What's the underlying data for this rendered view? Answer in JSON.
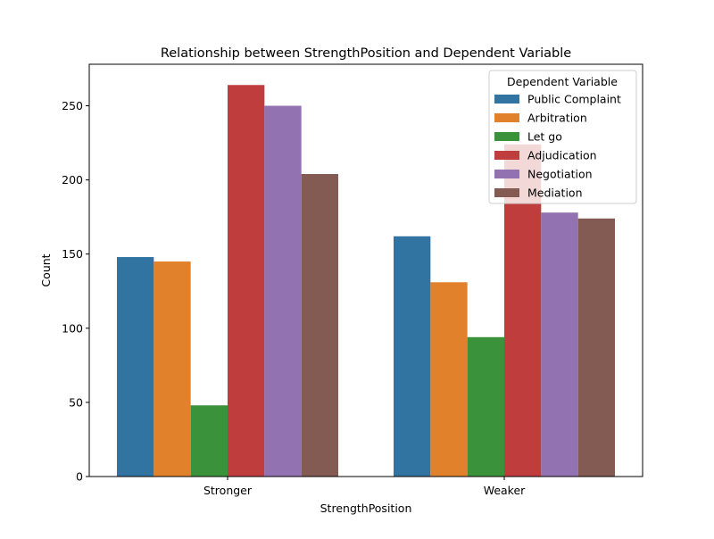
{
  "chart_data": {
    "type": "bar",
    "title": "Relationship between StrengthPosition and Dependent Variable",
    "xlabel": "StrengthPosition",
    "ylabel": "Count",
    "categories": [
      "Stronger",
      "Weaker"
    ],
    "ylim": [
      0,
      278
    ],
    "yticks": [
      0,
      50,
      100,
      150,
      200,
      250
    ],
    "grid": false,
    "legend": {
      "title": "Dependent Variable",
      "placement": "top-right"
    },
    "series": [
      {
        "name": "Public Complaint",
        "color": "#3274a1",
        "values": [
          148,
          162
        ]
      },
      {
        "name": "Arbitration",
        "color": "#e1812c",
        "values": [
          145,
          131
        ]
      },
      {
        "name": "Let go",
        "color": "#3a923a",
        "values": [
          48,
          94
        ]
      },
      {
        "name": "Adjudication",
        "color": "#c03d3e",
        "values": [
          264,
          224
        ]
      },
      {
        "name": "Negotiation",
        "color": "#9372b2",
        "values": [
          250,
          178
        ]
      },
      {
        "name": "Mediation",
        "color": "#845b53",
        "values": [
          204,
          174
        ]
      }
    ]
  }
}
